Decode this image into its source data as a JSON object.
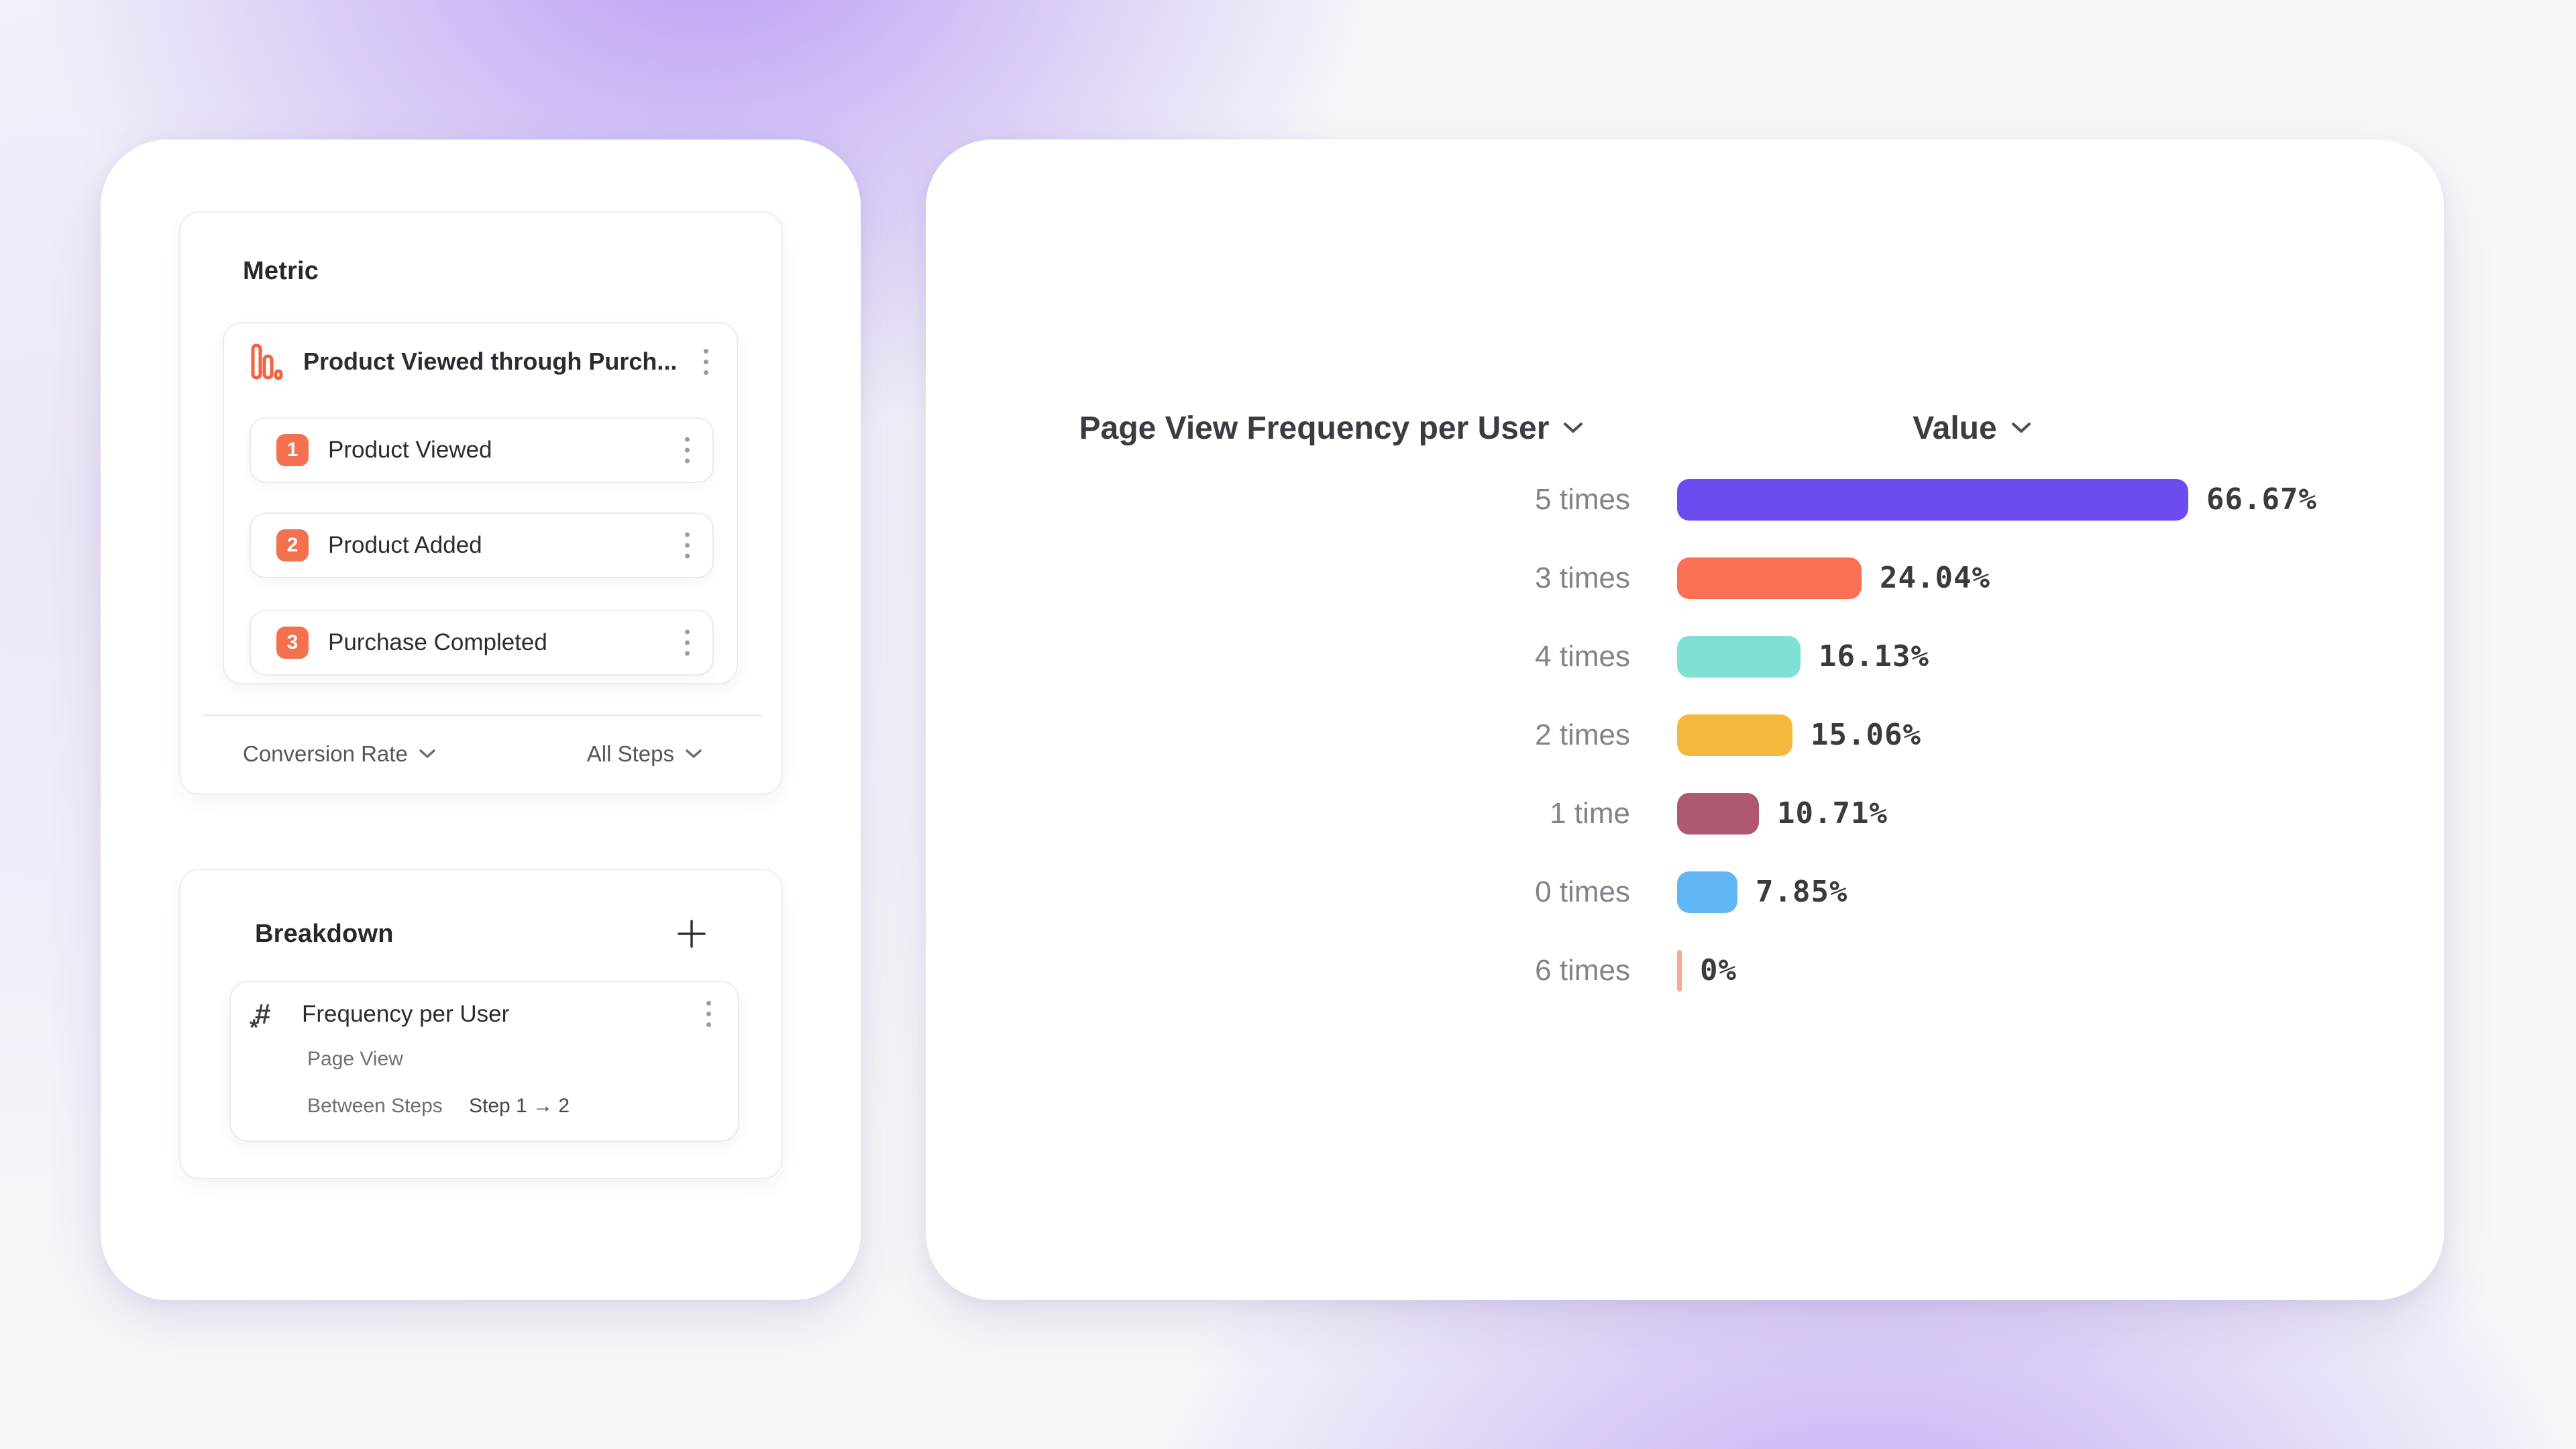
{
  "left_panel": {
    "metric": {
      "title": "Metric",
      "item": {
        "icon": "funnel-chart-icon",
        "title": "Product Viewed through Purch...",
        "menu": "kebab-menu-icon"
      },
      "steps": [
        {
          "number": "1",
          "label": "Product Viewed"
        },
        {
          "number": "2",
          "label": "Product Added"
        },
        {
          "number": "3",
          "label": "Purchase Completed"
        }
      ],
      "footer": {
        "measure_dropdown": "Conversion Rate",
        "steps_dropdown": "All Steps"
      }
    },
    "breakdown": {
      "title": "Breakdown",
      "item": {
        "icon": "hash-icon",
        "title": "Frequency per User",
        "event": "Page View",
        "counting_label": "Between Steps",
        "counting_value": "Step 1 → 2"
      }
    }
  },
  "chart": {
    "header": {
      "series_label": "Page View Frequency per User",
      "value_label": "Value"
    },
    "chart_data": {
      "type": "bar",
      "orientation": "horizontal",
      "title": "Page View Frequency per User",
      "value_column": "Value",
      "categories": [
        "5 times",
        "3 times",
        "4 times",
        "2 times",
        "1 time",
        "0 times",
        "6 times"
      ],
      "values": [
        66.67,
        24.04,
        16.13,
        15.06,
        10.71,
        7.85,
        0
      ],
      "value_labels": [
        "66.67%",
        "24.04%",
        "16.13%",
        "15.06%",
        "10.71%",
        "7.85%",
        "0%"
      ],
      "colors": [
        "#6C4CF1",
        "#F97054",
        "#7FE0D3",
        "#F6B83C",
        "#AE5970",
        "#63B6F6",
        "#F9A98C"
      ],
      "unit": "%",
      "xlim": [
        0,
        100
      ],
      "grid": false,
      "legend": false
    }
  },
  "colors": {
    "accent_orange": "#F4714F",
    "icon_orange": "#F4633F",
    "bar_purple": "#6C4CF1",
    "text_dark": "#27272e",
    "text_gray": "#6e6e77"
  }
}
